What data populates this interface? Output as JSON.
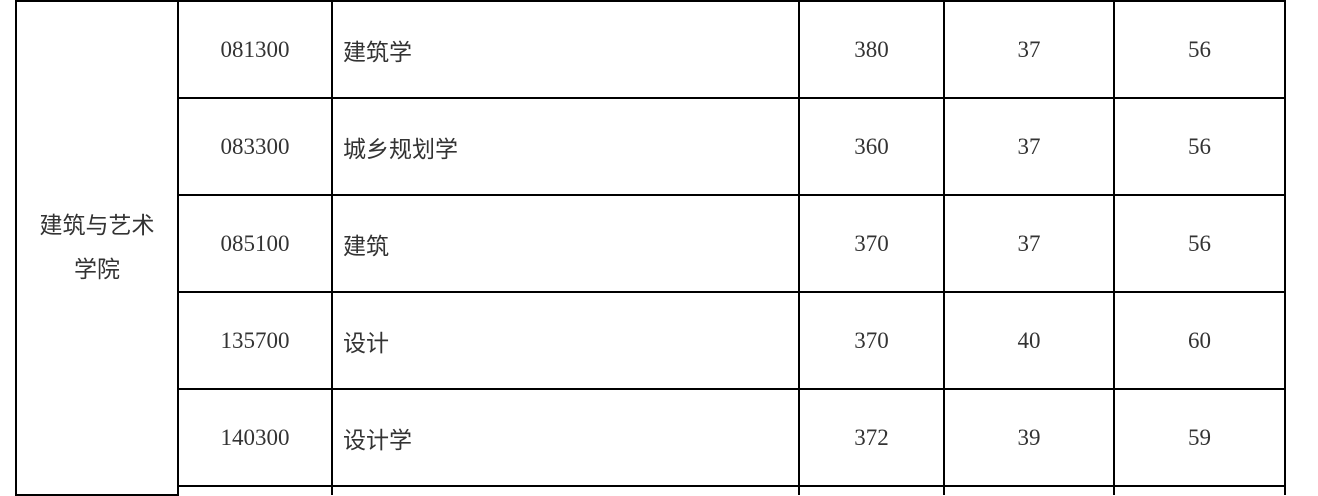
{
  "college": {
    "line1": "建筑与艺术",
    "line2": "学院"
  },
  "rows": [
    {
      "code": "081300",
      "name": "建筑学",
      "total": "380",
      "single_a": "37",
      "single_b": "56"
    },
    {
      "code": "083300",
      "name": "城乡规划学",
      "total": "360",
      "single_a": "37",
      "single_b": "56"
    },
    {
      "code": "085100",
      "name": "建筑",
      "total": "370",
      "single_a": "37",
      "single_b": "56"
    },
    {
      "code": "135700",
      "name": "设计",
      "total": "370",
      "single_a": "40",
      "single_b": "60"
    },
    {
      "code": "140300",
      "name": "设计学",
      "total": "372",
      "single_a": "39",
      "single_b": "59"
    }
  ]
}
